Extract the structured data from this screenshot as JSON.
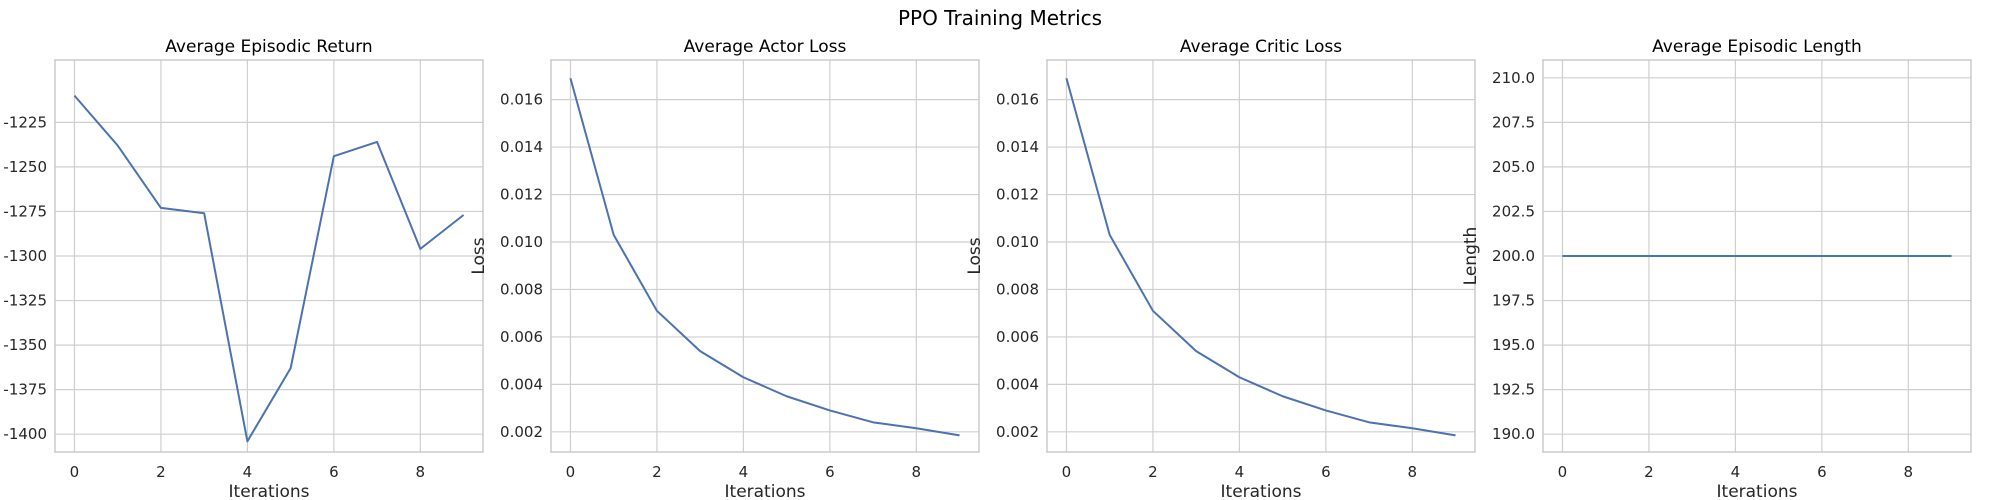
{
  "suptitle": "PPO Training Metrics",
  "colors": {
    "line": "#4c72b0",
    "grid": "#cfcfcf",
    "frame": "#c8c8c8",
    "text": "#262626"
  },
  "chart_data": [
    {
      "type": "line",
      "title": "Average Episodic Return",
      "xlabel": "Iterations",
      "ylabel": "",
      "xlim": [
        -0.45,
        9.45
      ],
      "ylim": [
        -1410,
        -1190
      ],
      "xticks": [
        0,
        2,
        4,
        6,
        8
      ],
      "yticks": [
        -1225,
        -1250,
        -1275,
        -1300,
        -1325,
        -1350,
        -1375,
        -1400
      ],
      "ytick_labels": [
        "-1225",
        "-1250",
        "-1275",
        "-1300",
        "-1325",
        "-1350",
        "-1375",
        "-1400"
      ],
      "grid": true,
      "x": [
        0,
        1,
        2,
        3,
        4,
        5,
        6,
        7,
        8,
        9
      ],
      "y": [
        -1210,
        -1238,
        -1273,
        -1276,
        -1404,
        -1363,
        -1244,
        -1236,
        -1296,
        -1277
      ]
    },
    {
      "type": "line",
      "title": "Average Actor Loss",
      "xlabel": "Iterations",
      "ylabel": "Loss",
      "xlim": [
        -0.45,
        9.45
      ],
      "ylim": [
        0.00115,
        0.01767
      ],
      "xticks": [
        0,
        2,
        4,
        6,
        8
      ],
      "yticks": [
        0.016,
        0.014,
        0.012,
        0.01,
        0.008,
        0.006,
        0.004,
        0.002
      ],
      "ytick_labels": [
        "0.016",
        "0.014",
        "0.012",
        "0.010",
        "0.008",
        "0.006",
        "0.004",
        "0.002"
      ],
      "grid": true,
      "x": [
        0,
        1,
        2,
        3,
        4,
        5,
        6,
        7,
        8,
        9
      ],
      "y": [
        0.0169,
        0.0103,
        0.0071,
        0.0054,
        0.0043,
        0.0035,
        0.0029,
        0.0024,
        0.00215,
        0.00185
      ]
    },
    {
      "type": "line",
      "title": "Average Critic Loss",
      "xlabel": "Iterations",
      "ylabel": "Loss",
      "xlim": [
        -0.45,
        9.45
      ],
      "ylim": [
        0.00115,
        0.01767
      ],
      "xticks": [
        0,
        2,
        4,
        6,
        8
      ],
      "yticks": [
        0.016,
        0.014,
        0.012,
        0.01,
        0.008,
        0.006,
        0.004,
        0.002
      ],
      "ytick_labels": [
        "0.016",
        "0.014",
        "0.012",
        "0.010",
        "0.008",
        "0.006",
        "0.004",
        "0.002"
      ],
      "grid": true,
      "x": [
        0,
        1,
        2,
        3,
        4,
        5,
        6,
        7,
        8,
        9
      ],
      "y": [
        0.0169,
        0.0103,
        0.0071,
        0.0054,
        0.0043,
        0.0035,
        0.0029,
        0.0024,
        0.00215,
        0.00185
      ]
    },
    {
      "type": "line",
      "title": "Average Episodic Length",
      "xlabel": "Iterations",
      "ylabel": "Length",
      "xlim": [
        -0.45,
        9.45
      ],
      "ylim": [
        189.0,
        211.0
      ],
      "xticks": [
        0,
        2,
        4,
        6,
        8
      ],
      "yticks": [
        210.0,
        207.5,
        205.0,
        202.5,
        200.0,
        197.5,
        195.0,
        192.5,
        190.0
      ],
      "ytick_labels": [
        "210.0",
        "207.5",
        "205.0",
        "202.5",
        "200.0",
        "197.5",
        "195.0",
        "192.5",
        "190.0"
      ],
      "grid": true,
      "x": [
        0,
        1,
        2,
        3,
        4,
        5,
        6,
        7,
        8,
        9
      ],
      "y": [
        200,
        200,
        200,
        200,
        200,
        200,
        200,
        200,
        200,
        200
      ]
    }
  ]
}
